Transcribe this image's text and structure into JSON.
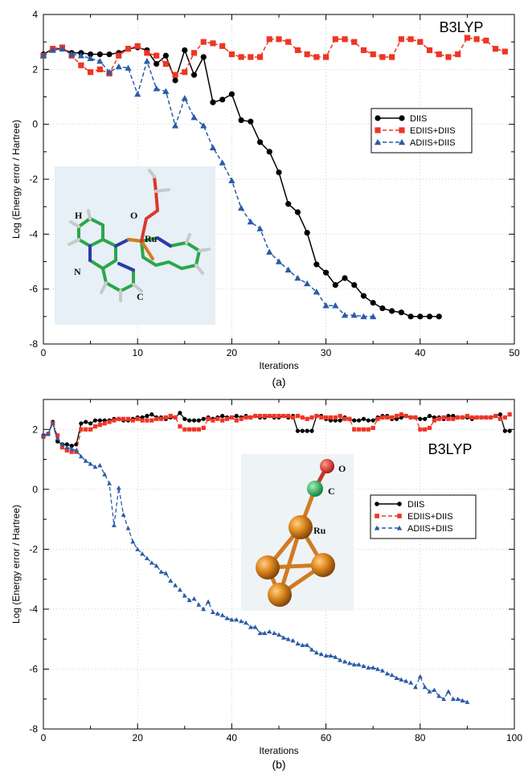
{
  "chart_data": [
    {
      "type": "line",
      "panel_label": "(a)",
      "method": "B3LYP",
      "xlabel": "Iterations",
      "ylabel": "Log (Energy error / Hartree)",
      "xlim": [
        0,
        50
      ],
      "ylim": [
        -8,
        4
      ],
      "xticks": [
        0,
        10,
        20,
        30,
        40,
        50
      ],
      "yticks": [
        -8,
        -6,
        -4,
        -2,
        0,
        2,
        4
      ],
      "legend_position": "middle-right",
      "inset_labels": [
        "H",
        "O",
        "Ru",
        "N",
        "C"
      ],
      "series": [
        {
          "name": "DIIS",
          "color": "#000000",
          "marker": "circle",
          "dash": "solid",
          "x": [
            0,
            1,
            2,
            3,
            4,
            5,
            6,
            7,
            8,
            9,
            10,
            11,
            12,
            13,
            14,
            15,
            16,
            17,
            18,
            19,
            20,
            21,
            22,
            23,
            24,
            25,
            26,
            27,
            28,
            29,
            30,
            31,
            32,
            33,
            34,
            35,
            36,
            37,
            38,
            39,
            40,
            41,
            42
          ],
          "y": [
            2.55,
            2.75,
            2.75,
            2.6,
            2.6,
            2.55,
            2.55,
            2.55,
            2.6,
            2.75,
            2.8,
            2.7,
            2.2,
            2.5,
            1.6,
            2.7,
            1.8,
            2.45,
            0.8,
            0.9,
            1.1,
            0.15,
            0.1,
            -0.65,
            -1.0,
            -1.75,
            -2.9,
            -3.2,
            -3.95,
            -5.1,
            -5.4,
            -5.85,
            -5.6,
            -5.85,
            -6.25,
            -6.5,
            -6.7,
            -6.8,
            -6.85,
            -7.0,
            -7.0,
            -7.0,
            -7.0
          ]
        },
        {
          "name": "EDIIS+DIIS",
          "color": "#ee3524",
          "marker": "square",
          "dash": "dashed",
          "x": [
            0,
            1,
            2,
            3,
            4,
            5,
            6,
            7,
            8,
            9,
            10,
            11,
            12,
            13,
            14,
            15,
            16,
            17,
            18,
            19,
            20,
            21,
            22,
            23,
            24,
            25,
            26,
            27,
            28,
            29,
            30,
            31,
            32,
            33,
            34,
            35,
            36,
            37,
            38,
            39,
            40,
            41,
            42,
            43,
            44,
            45,
            46,
            47,
            48,
            49
          ],
          "y": [
            2.5,
            2.75,
            2.8,
            2.5,
            2.15,
            1.9,
            2.0,
            1.85,
            2.5,
            2.75,
            2.85,
            2.6,
            2.5,
            2.2,
            1.8,
            1.9,
            2.6,
            3.0,
            2.95,
            2.85,
            2.55,
            2.45,
            2.45,
            2.45,
            3.1,
            3.1,
            3.0,
            2.7,
            2.55,
            2.45,
            2.45,
            3.1,
            3.1,
            3.0,
            2.7,
            2.55,
            2.45,
            2.45,
            3.1,
            3.1,
            3.0,
            2.7,
            2.55,
            2.45,
            2.55,
            3.15,
            3.1,
            3.05,
            2.75,
            2.65
          ]
        },
        {
          "name": "ADIIS+DIIS",
          "color": "#2a5ca8",
          "marker": "triangle",
          "dash": "dashed",
          "x": [
            0,
            1,
            2,
            3,
            4,
            5,
            6,
            7,
            8,
            9,
            10,
            11,
            12,
            13,
            14,
            15,
            16,
            17,
            18,
            19,
            20,
            21,
            22,
            23,
            24,
            25,
            26,
            27,
            28,
            29,
            30,
            31,
            32,
            33,
            34,
            35
          ],
          "y": [
            2.5,
            2.7,
            2.75,
            2.55,
            2.5,
            2.4,
            2.3,
            1.9,
            2.1,
            2.05,
            1.1,
            2.3,
            1.3,
            1.2,
            -0.05,
            0.95,
            0.25,
            -0.05,
            -0.85,
            -1.4,
            -2.05,
            -3.05,
            -3.55,
            -3.8,
            -4.65,
            -5.0,
            -5.3,
            -5.6,
            -5.8,
            -6.1,
            -6.6,
            -6.6,
            -6.95,
            -6.95,
            -7.0,
            -7.0
          ]
        }
      ]
    },
    {
      "type": "line",
      "panel_label": "(b)",
      "method": "B3LYP",
      "xlabel": "Iterations",
      "ylabel": "Log (Energy error / Hartree)",
      "xlim": [
        0,
        100
      ],
      "ylim": [
        -8,
        3
      ],
      "xticks": [
        0,
        20,
        40,
        60,
        80,
        100
      ],
      "yticks": [
        -8,
        -6,
        -4,
        -2,
        0,
        2
      ],
      "legend_position": "middle-right",
      "inset_labels": [
        "O",
        "C",
        "Ru"
      ],
      "series": [
        {
          "name": "DIIS",
          "color": "#000000",
          "marker": "circle",
          "dash": "solid",
          "x": [
            0,
            1,
            2,
            3,
            4,
            5,
            6,
            7,
            8,
            9,
            10,
            11,
            12,
            13,
            14,
            15,
            16,
            17,
            18,
            19,
            20,
            21,
            22,
            23,
            24,
            25,
            26,
            27,
            28,
            29,
            30,
            31,
            32,
            33,
            34,
            35,
            36,
            37,
            38,
            39,
            40,
            41,
            42,
            43,
            44,
            45,
            46,
            47,
            48,
            49,
            50,
            51,
            52,
            53,
            54,
            55,
            56,
            57,
            58,
            59,
            60,
            61,
            62,
            63,
            64,
            65,
            66,
            67,
            68,
            69,
            70,
            71,
            72,
            73,
            74,
            75,
            76,
            77,
            78,
            79,
            80,
            81,
            82,
            83,
            84,
            85,
            86,
            87,
            88,
            89,
            90,
            91,
            92,
            93,
            94,
            95,
            96,
            97,
            98,
            99
          ],
          "y": [
            1.8,
            1.85,
            2.25,
            1.6,
            1.5,
            1.5,
            1.45,
            1.5,
            2.2,
            2.25,
            2.2,
            2.3,
            2.3,
            2.3,
            2.3,
            2.35,
            2.35,
            2.3,
            2.3,
            2.35,
            2.4,
            2.4,
            2.45,
            2.5,
            2.4,
            2.4,
            2.35,
            2.4,
            2.4,
            2.55,
            2.35,
            2.3,
            2.3,
            2.3,
            2.35,
            2.4,
            2.35,
            2.4,
            2.45,
            2.4,
            2.4,
            2.45,
            2.4,
            2.45,
            2.4,
            2.45,
            2.4,
            2.4,
            2.45,
            2.4,
            2.4,
            2.45,
            2.4,
            2.45,
            1.95,
            1.95,
            1.95,
            1.95,
            2.45,
            2.45,
            2.35,
            2.3,
            2.3,
            2.3,
            2.4,
            2.35,
            2.3,
            2.3,
            2.35,
            2.3,
            2.3,
            2.4,
            2.45,
            2.45,
            2.35,
            2.35,
            2.4,
            2.45,
            2.4,
            2.4,
            2.35,
            2.35,
            2.45,
            2.4,
            2.4,
            2.35,
            2.45,
            2.45,
            2.4,
            2.4,
            2.4,
            2.35,
            2.4,
            2.4,
            2.4,
            2.4,
            2.45,
            2.5,
            1.95,
            1.95
          ]
        },
        {
          "name": "EDIIS+DIIS",
          "color": "#ee3524",
          "marker": "square",
          "dash": "dashed",
          "x": [
            0,
            1,
            2,
            3,
            4,
            5,
            6,
            7,
            8,
            9,
            10,
            11,
            12,
            13,
            14,
            15,
            16,
            17,
            18,
            19,
            20,
            21,
            22,
            23,
            24,
            25,
            26,
            27,
            28,
            29,
            30,
            31,
            32,
            33,
            34,
            35,
            36,
            37,
            38,
            39,
            40,
            41,
            42,
            43,
            44,
            45,
            46,
            47,
            48,
            49,
            50,
            51,
            52,
            53,
            54,
            55,
            56,
            57,
            58,
            59,
            60,
            61,
            62,
            63,
            64,
            65,
            66,
            67,
            68,
            69,
            70,
            71,
            72,
            73,
            74,
            75,
            76,
            77,
            78,
            79,
            80,
            81,
            82,
            83,
            84,
            85,
            86,
            87,
            88,
            89,
            90,
            91,
            92,
            93,
            94,
            95,
            96,
            97,
            98,
            99
          ],
          "y": [
            1.75,
            1.85,
            2.2,
            1.8,
            1.4,
            1.3,
            1.25,
            1.25,
            2.0,
            2.0,
            2.0,
            2.1,
            2.15,
            2.2,
            2.25,
            2.3,
            2.35,
            2.35,
            2.35,
            2.3,
            2.35,
            2.3,
            2.3,
            2.3,
            2.35,
            2.35,
            2.4,
            2.45,
            2.4,
            2.1,
            2.0,
            2.0,
            2.0,
            2.0,
            2.05,
            2.35,
            2.3,
            2.35,
            2.3,
            2.35,
            2.4,
            2.3,
            2.35,
            2.4,
            2.4,
            2.45,
            2.45,
            2.45,
            2.45,
            2.45,
            2.45,
            2.45,
            2.45,
            2.4,
            2.45,
            2.4,
            2.35,
            2.4,
            2.45,
            2.4,
            2.4,
            2.4,
            2.4,
            2.45,
            2.35,
            2.35,
            2.0,
            2.0,
            2.0,
            2.0,
            2.05,
            2.35,
            2.4,
            2.4,
            2.4,
            2.45,
            2.5,
            2.45,
            2.4,
            2.4,
            2.0,
            2.0,
            2.05,
            2.3,
            2.35,
            2.4,
            2.35,
            2.35,
            2.4,
            2.4,
            2.45,
            2.4,
            2.4,
            2.4,
            2.4,
            2.4,
            2.45,
            2.35,
            2.4,
            2.5
          ]
        },
        {
          "name": "ADIIS+DIIS",
          "color": "#2a5ca8",
          "marker": "triangle",
          "dash": "dashed",
          "x": [
            0,
            1,
            2,
            3,
            4,
            5,
            6,
            7,
            8,
            9,
            10,
            11,
            12,
            13,
            14,
            15,
            16,
            17,
            18,
            19,
            20,
            21,
            22,
            23,
            24,
            25,
            26,
            27,
            28,
            29,
            30,
            31,
            32,
            33,
            34,
            35,
            36,
            37,
            38,
            39,
            40,
            41,
            42,
            43,
            44,
            45,
            46,
            47,
            48,
            49,
            50,
            51,
            52,
            53,
            54,
            55,
            56,
            57,
            58,
            59,
            60,
            61,
            62,
            63,
            64,
            65,
            66,
            67,
            68,
            69,
            70,
            71,
            72,
            73,
            74,
            75,
            76,
            77,
            78,
            79,
            80,
            81,
            82,
            83,
            84,
            85,
            86,
            87,
            88,
            89,
            90
          ],
          "y": [
            1.8,
            1.85,
            2.2,
            1.7,
            1.5,
            1.4,
            1.35,
            1.3,
            1.1,
            0.95,
            0.85,
            0.75,
            0.8,
            0.5,
            0.2,
            -1.2,
            0.05,
            -0.85,
            -1.3,
            -1.75,
            -2.0,
            -2.15,
            -2.3,
            -2.45,
            -2.55,
            -2.75,
            -2.8,
            -3.05,
            -3.2,
            -3.35,
            -3.55,
            -3.7,
            -3.65,
            -3.85,
            -4.0,
            -3.75,
            -4.1,
            -4.15,
            -4.2,
            -4.3,
            -4.35,
            -4.35,
            -4.4,
            -4.45,
            -4.6,
            -4.6,
            -4.8,
            -4.8,
            -4.75,
            -4.8,
            -4.85,
            -4.95,
            -5.0,
            -5.05,
            -5.15,
            -5.2,
            -5.2,
            -5.35,
            -5.45,
            -5.5,
            -5.55,
            -5.55,
            -5.6,
            -5.7,
            -5.75,
            -5.8,
            -5.85,
            -5.85,
            -5.9,
            -5.95,
            -5.95,
            -6.0,
            -6.05,
            -6.15,
            -6.2,
            -6.3,
            -6.35,
            -6.4,
            -6.45,
            -6.6,
            -6.25,
            -6.6,
            -6.75,
            -6.7,
            -6.9,
            -7.0,
            -6.75,
            -7.0,
            -7.0,
            -7.05,
            -7.1
          ]
        }
      ]
    }
  ]
}
